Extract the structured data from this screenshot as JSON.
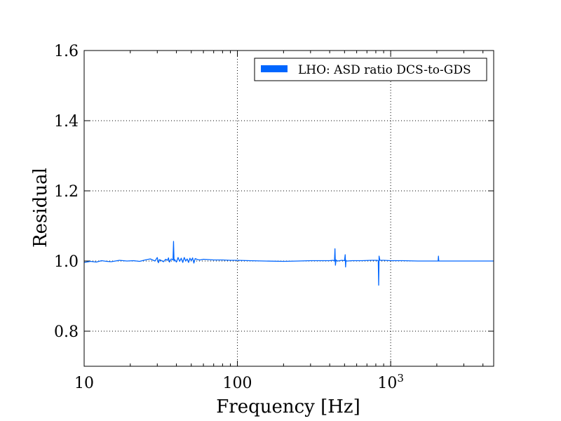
{
  "chart_data": {
    "type": "line",
    "title": "",
    "xlabel": "Frequency [Hz]",
    "ylabel": "Residual",
    "xscale": "log",
    "xlim": [
      10,
      4700
    ],
    "ylim": [
      0.7,
      1.6
    ],
    "grid": true,
    "legend_position": "top-right",
    "x_ticks": [
      {
        "value": 10,
        "label": "10"
      },
      {
        "value": 100,
        "label": "100"
      },
      {
        "value": 1000,
        "label": "10",
        "sup": "3"
      }
    ],
    "y_ticks": [
      {
        "value": 0.8,
        "label": "0.8"
      },
      {
        "value": 1.0,
        "label": "1.0"
      },
      {
        "value": 1.2,
        "label": "1.2"
      },
      {
        "value": 1.4,
        "label": "1.4"
      },
      {
        "value": 1.6,
        "label": "1.6"
      }
    ],
    "series": [
      {
        "name": "LHO: ASD ratio DCS-to-GDS",
        "color": "#0066ff",
        "x": [
          10,
          11,
          12,
          13,
          14,
          15,
          17,
          19,
          21,
          23,
          25,
          27,
          29,
          30,
          30.5,
          31,
          33,
          34,
          35,
          35.5,
          36,
          37,
          38,
          38.3,
          38.6,
          39,
          40,
          41,
          42,
          43,
          44,
          45,
          46,
          47,
          48,
          49,
          50,
          51,
          52,
          53,
          55,
          57,
          60,
          65,
          70,
          80,
          90,
          100,
          120,
          150,
          200,
          250,
          300,
          350,
          400,
          420,
          430,
          433,
          436,
          440,
          450,
          480,
          500,
          505,
          508,
          511,
          515,
          520,
          560,
          650,
          750,
          820,
          830,
          835,
          840,
          850,
          900,
          1000,
          1200,
          1500,
          2000,
          2040,
          2050,
          2060,
          2100,
          2500,
          3000,
          3500,
          4000,
          4700
        ],
        "y": [
          0.996,
          0.999,
          0.997,
          1.001,
          0.999,
          0.998,
          1.002,
          1.0,
          1.001,
          0.999,
          1.003,
          1.006,
          1.0,
          1.01,
          0.995,
          1.004,
          0.998,
          1.005,
          1.002,
          1.009,
          0.997,
          1.006,
          1.003,
          1.056,
          1.0,
          1.004,
          0.997,
          1.01,
          0.999,
          1.008,
          0.996,
          1.01,
          1.0,
          1.006,
          0.996,
          1.008,
          1.001,
          1.009,
          0.994,
          1.007,
          1.004,
          1.003,
          1.005,
          1.004,
          1.003,
          1.003,
          1.002,
          1.002,
          1.001,
          1.0,
          0.999,
          1.0,
          1.001,
          1.001,
          1.001,
          1.002,
          1.0,
          1.035,
          0.988,
          1.003,
          1.0,
          1.002,
          1.001,
          1.018,
          0.983,
          1.002,
          1.0,
          1.0,
          1.001,
          1.001,
          1.002,
          1.002,
          1.0,
          0.931,
          1.014,
          1.002,
          1.002,
          1.001,
          1.001,
          1.0,
          1.0,
          1.0,
          1.014,
          1.0,
          1.0,
          1.0,
          1.0,
          1.0,
          1.0,
          1.0
        ]
      }
    ]
  }
}
